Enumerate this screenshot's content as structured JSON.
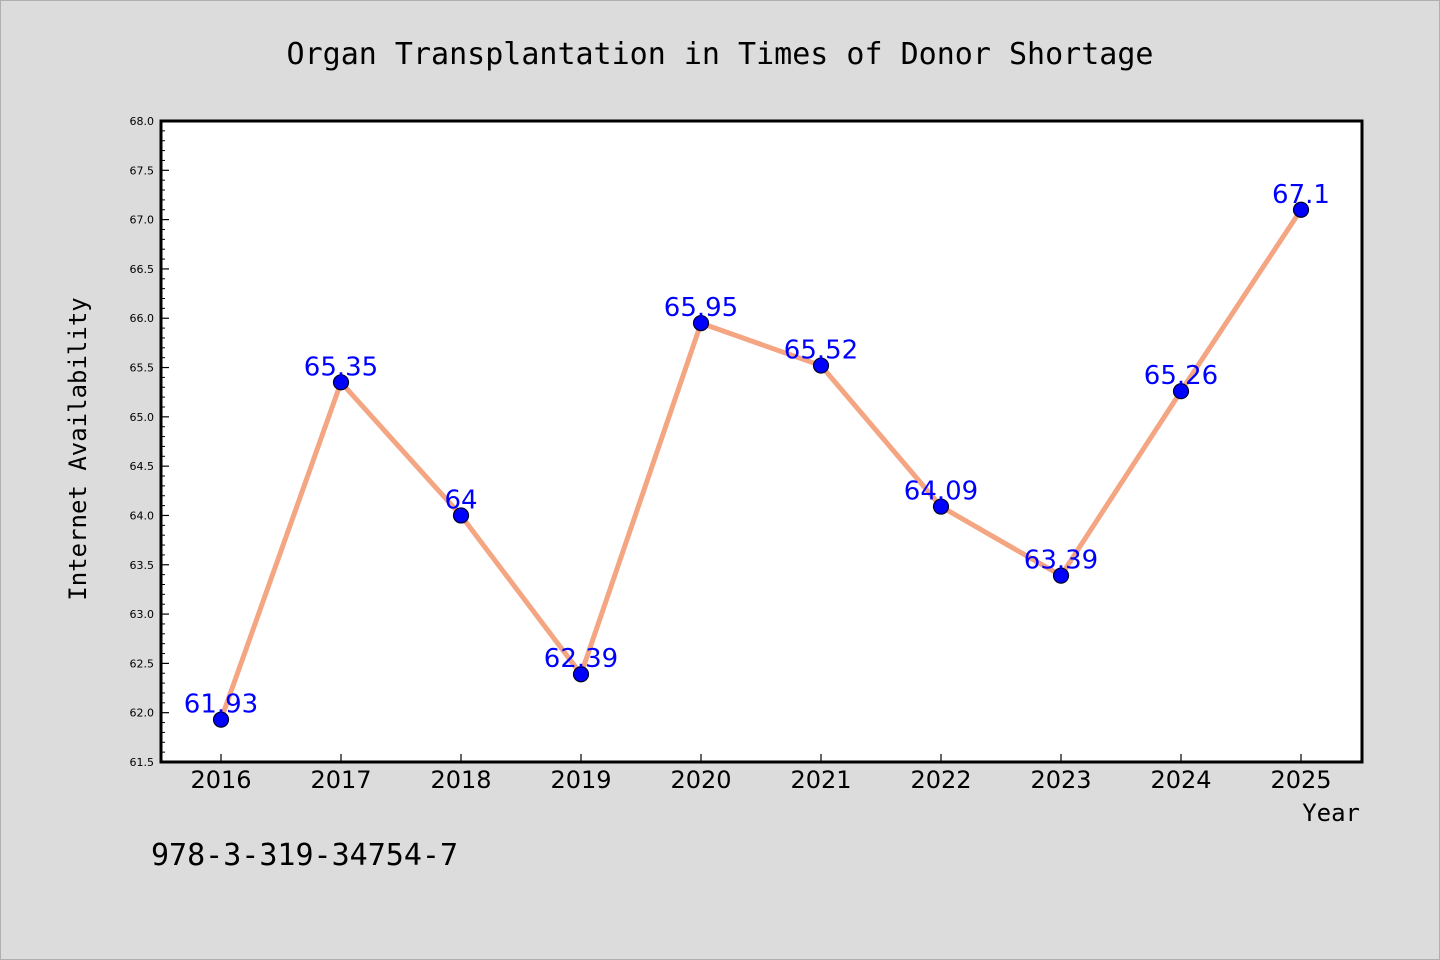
{
  "chart_data": {
    "type": "line",
    "title": "Organ Transplantation in Times of Donor Shortage",
    "xlabel": "Year",
    "ylabel": "Internet Availability",
    "x": [
      "2016",
      "2017",
      "2018",
      "2019",
      "2020",
      "2021",
      "2022",
      "2023",
      "2024",
      "2025"
    ],
    "series": [
      {
        "values": [
          61.93,
          65.35,
          64,
          62.39,
          65.95,
          65.52,
          64.09,
          63.39,
          65.26,
          67.1
        ],
        "labels": [
          "61.93",
          "65.35",
          "64",
          "62.39",
          "65.95",
          "65.52",
          "64.09",
          "63.39",
          "65.26",
          "67.1"
        ]
      }
    ],
    "ylim": [
      61.5,
      68.0
    ],
    "yticks": [
      "61.5",
      "62.0",
      "62.5",
      "63.0",
      "63.5",
      "64.0",
      "64.5",
      "65.0",
      "65.5",
      "66.0",
      "66.5",
      "67.0",
      "67.5",
      "68.0"
    ],
    "grid": false,
    "colors": {
      "line": "#f4a582",
      "marker": "#0000ff",
      "data_label": "#0000ff",
      "background": "#dcdcdc",
      "plot_area": "#ffffff"
    }
  },
  "footer": {
    "isbn": "978-3-319-34754-7"
  }
}
